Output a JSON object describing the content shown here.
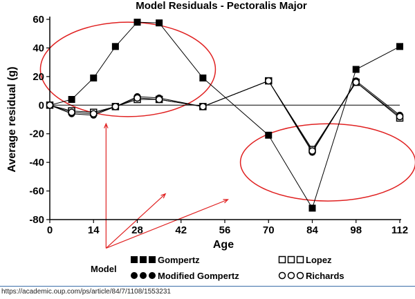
{
  "chart_data": {
    "type": "line",
    "title": "Model Residuals - Pectoralis Major",
    "xlabel": "Age",
    "ylabel": "Average residual (g)",
    "xlim": [
      0,
      112
    ],
    "ylim": [
      -80,
      60
    ],
    "xticks": [
      0,
      14,
      28,
      42,
      56,
      70,
      84,
      98,
      112
    ],
    "yticks": [
      60,
      40,
      20,
      0,
      -20,
      -40,
      -60,
      -80
    ],
    "legend_title": "Model",
    "series": [
      {
        "name": "Gompertz",
        "marker": "square-filled",
        "line_width": 1,
        "x": [
          0,
          7,
          14,
          21,
          28,
          35,
          49,
          70,
          84,
          98,
          112
        ],
        "y": [
          0,
          4,
          19,
          41,
          58,
          57.5,
          19,
          -21,
          -72,
          25,
          41
        ]
      },
      {
        "name": "Modified Gompertz",
        "marker": "circle-filled",
        "line_width": 1,
        "x": [
          0,
          7,
          14,
          21,
          28,
          35,
          49,
          70,
          84,
          98,
          112
        ],
        "y": [
          0,
          -6,
          -7,
          -1,
          6,
          5,
          -1,
          17,
          -33,
          17,
          -7
        ]
      },
      {
        "name": "Lopez",
        "marker": "square-open",
        "line_width": 1,
        "x": [
          0,
          7,
          14,
          21,
          28,
          35,
          49,
          70,
          84,
          98,
          112
        ],
        "y": [
          0,
          -4,
          -5,
          -1,
          4,
          4,
          -1,
          17,
          -31,
          16,
          -9
        ]
      },
      {
        "name": "Richards",
        "marker": "circle-open",
        "line_width": 1,
        "x": [
          0,
          7,
          14,
          21,
          28,
          35,
          49,
          70,
          84,
          98,
          112
        ],
        "y": [
          0,
          -5,
          -6,
          -1,
          5,
          4,
          -1,
          17,
          -32,
          16,
          -8
        ]
      }
    ],
    "annotations": {
      "ellipses": [
        {
          "cx": 25,
          "cy": 25,
          "rx": 28,
          "ry": 33,
          "color": "#e02020"
        },
        {
          "cx": 89,
          "cy": -40,
          "rx": 28,
          "ry": 27,
          "color": "#e02020"
        }
      ],
      "arrow_origin": {
        "x": 18,
        "y": -100
      },
      "arrow_targets": [
        {
          "x": 18,
          "y": -13
        },
        {
          "x": 37,
          "y": -62
        },
        {
          "x": 57,
          "y": -66
        }
      ]
    },
    "grid": false,
    "legend_position": "bottom"
  },
  "footer": {
    "source_url": "https://academic.oup.com/ps/article/84/7/1108/1553231"
  }
}
